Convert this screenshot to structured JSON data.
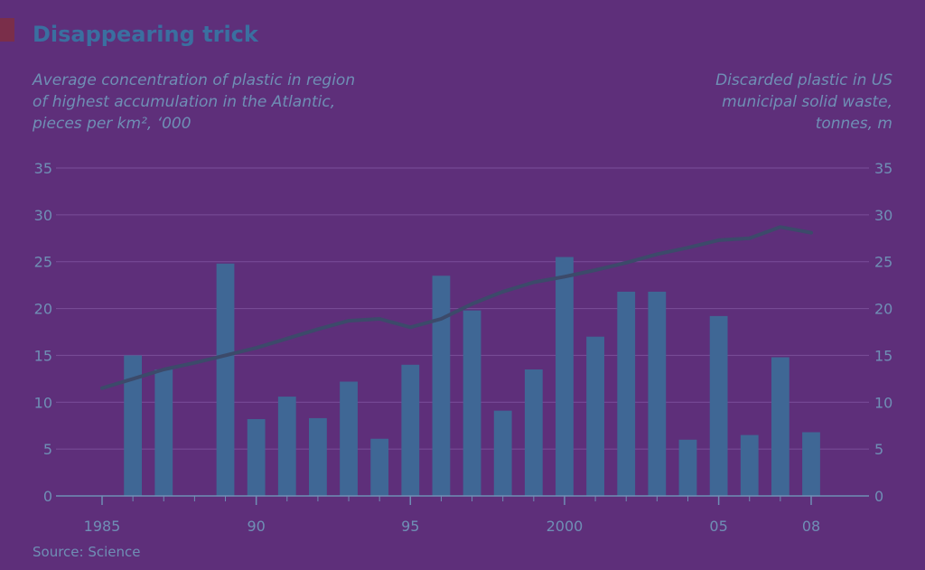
{
  "header": {
    "title": "Disappearing trick",
    "left_subtitle": [
      "Average concentration of plastic in region",
      "of highest accumulation in the Atlantic,",
      "pieces per km², ‘000"
    ],
    "right_subtitle": [
      "Discarded plastic in US",
      "municipal solid waste,",
      "tonnes, m"
    ],
    "source": "Source: Science"
  },
  "colors": {
    "background": "#5e2f7a",
    "bar": "#3f6795",
    "line": "#3c4a6a",
    "accent": "#7a2e4a"
  },
  "chart_data": {
    "type": "bar",
    "x": [
      1985,
      1986,
      1987,
      1988,
      1989,
      1990,
      1991,
      1992,
      1993,
      1994,
      1995,
      1996,
      1997,
      1998,
      1999,
      2000,
      2001,
      2002,
      2003,
      2004,
      2005,
      2006,
      2007,
      2008
    ],
    "x_tick_labels": [
      "1985",
      "90",
      "95",
      "2000",
      "05",
      "08"
    ],
    "x_tick_values": [
      1985,
      1990,
      1995,
      2000,
      2005,
      2008
    ],
    "ylim": [
      0,
      35
    ],
    "y_ticks": [
      "0",
      "5",
      "10",
      "15",
      "20",
      "25",
      "30",
      "35"
    ],
    "grid": true,
    "series": [
      {
        "type": "bar",
        "axis": "left",
        "values": [
          null,
          15,
          13.5,
          null,
          24.8,
          8.2,
          10.6,
          8.3,
          12.2,
          6.1,
          14,
          23.5,
          19.8,
          9.1,
          13.5,
          25.5,
          17,
          21.8,
          21.8,
          6,
          19.2,
          6.5,
          14.8,
          6.8
        ]
      },
      {
        "type": "line",
        "axis": "right",
        "values": [
          11.5,
          12.5,
          13.5,
          14.2,
          15,
          15.8,
          16.8,
          17.8,
          18.7,
          18.9,
          18,
          18.9,
          20.5,
          21.8,
          22.8,
          23.4,
          24.1,
          24.9,
          25.8,
          26.5,
          27.3,
          27.5,
          28.7,
          28.1
        ]
      }
    ]
  }
}
